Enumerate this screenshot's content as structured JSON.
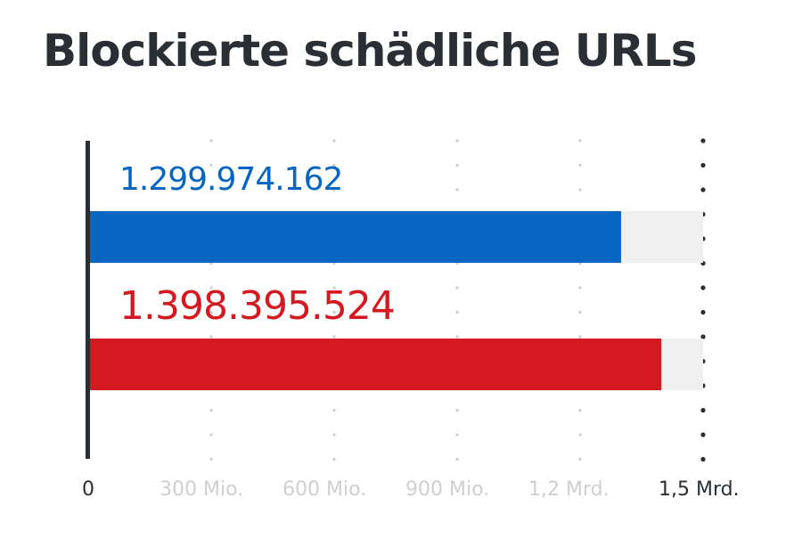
{
  "title": "Blockierte schädliche URLs",
  "chart_data": {
    "type": "bar",
    "orientation": "horizontal",
    "title": "Blockierte schädliche URLs",
    "xlim": [
      0,
      1500000000
    ],
    "ticks": [
      0,
      300000000,
      600000000,
      900000000,
      1200000000,
      1500000000
    ],
    "tick_labels": [
      "0",
      "300 Mio.",
      "600 Mio.",
      "900 Mio.",
      "1,2 Mrd.",
      "1,5 Mrd."
    ],
    "grid": true,
    "series": [
      {
        "name": "bar-1",
        "value": 1299974162,
        "label": "1.299.974.162",
        "color": "#0666c2"
      },
      {
        "name": "bar-2",
        "value": 1398395524,
        "label": "1.398.395.524",
        "color": "#d51920"
      }
    ],
    "colors": {
      "track": "#f0f0f0",
      "axis": "#2a2f36",
      "grid": "#cccccc",
      "tick_muted": "#cfcfcf"
    }
  }
}
